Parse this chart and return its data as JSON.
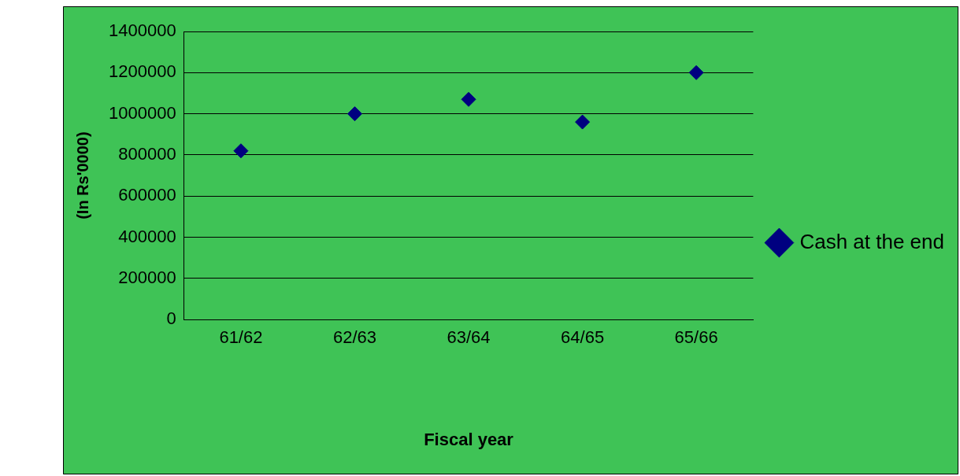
{
  "chart_data": {
    "type": "scatter",
    "xlabel": "Fiscal year",
    "ylabel": "(In Rs'0000)",
    "categories": [
      "61/62",
      "62/63",
      "63/64",
      "64/65",
      "65/66"
    ],
    "series": [
      {
        "name": "Cash at the end",
        "color": "#000080",
        "values": [
          820000,
          1000000,
          1070000,
          960000,
          1200000
        ]
      }
    ],
    "ylim": [
      0,
      1400000
    ],
    "yticks": [
      0,
      200000,
      400000,
      600000,
      800000,
      1000000,
      1200000,
      1400000
    ],
    "grid": "y",
    "legend": "right",
    "marker": "diamond"
  }
}
